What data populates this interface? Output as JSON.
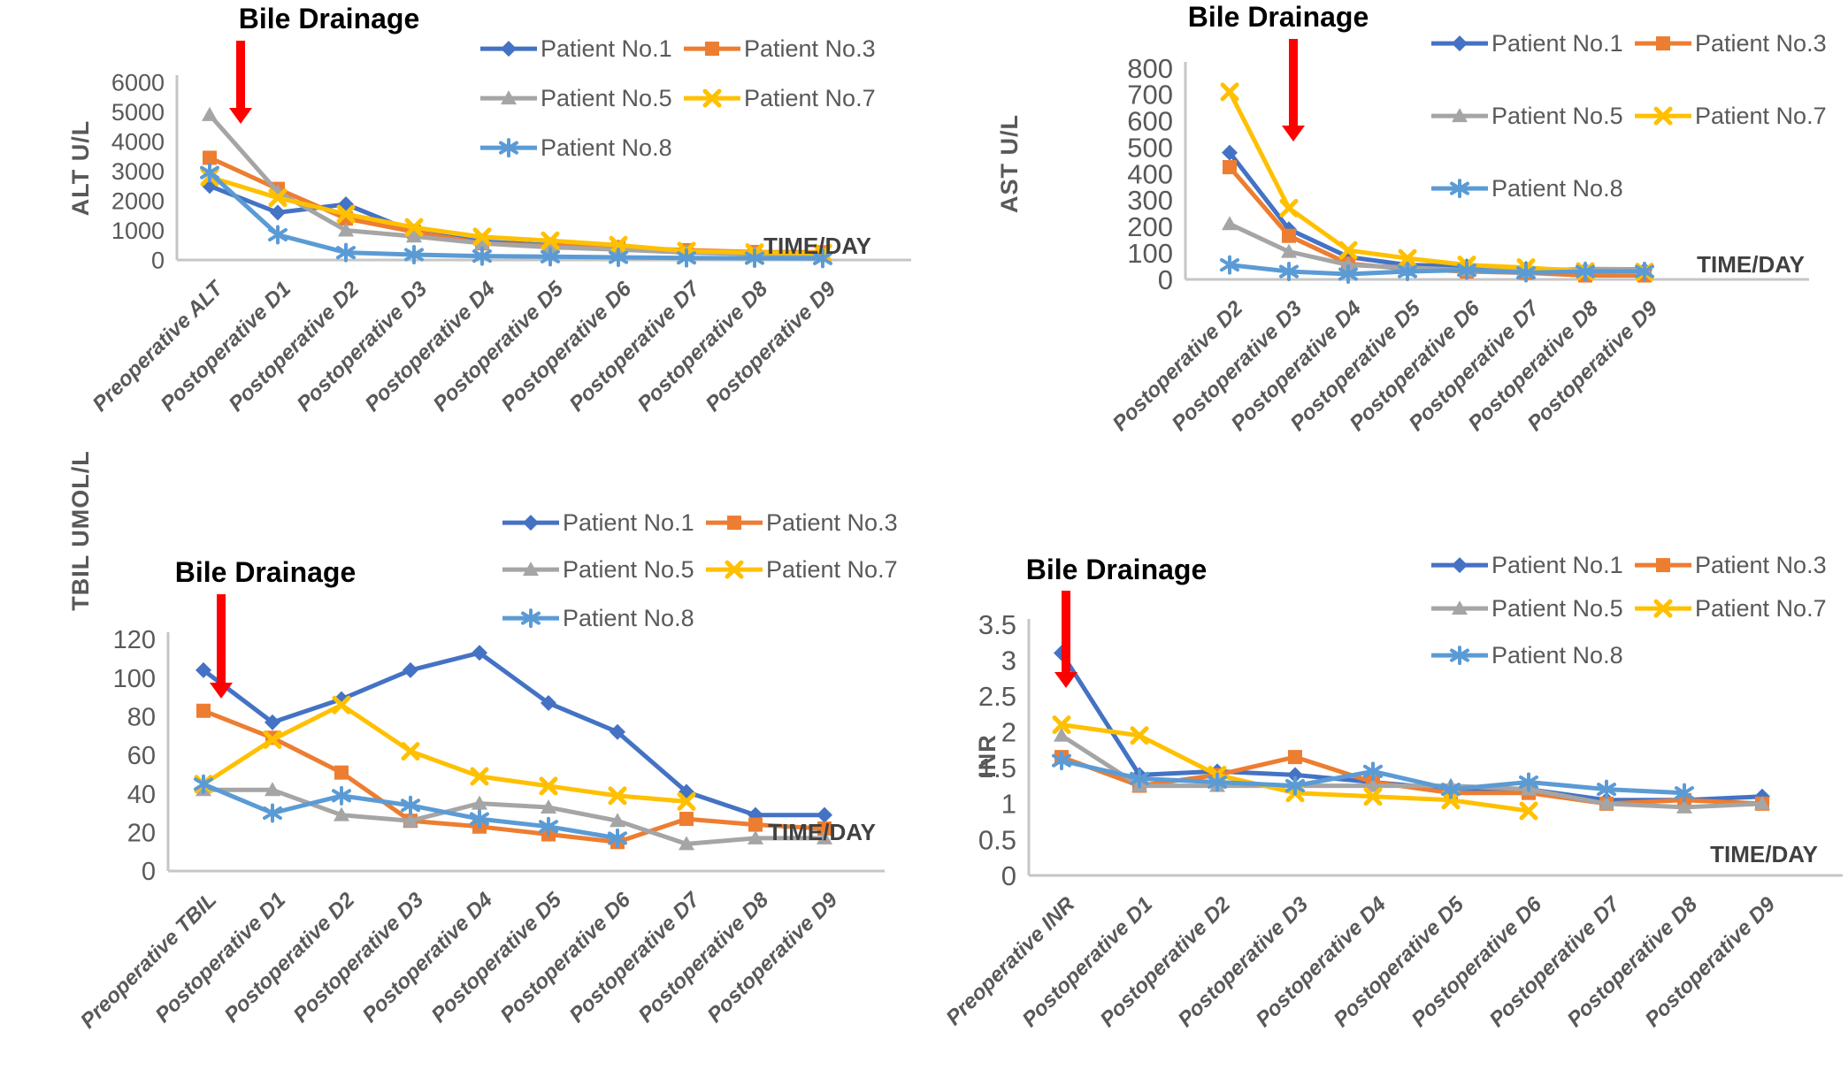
{
  "figure": {
    "annotation_label": "Bile Drainage",
    "time_axis_label": "TIME/DAY",
    "legend_labels": [
      "Patient No.1",
      "Patient No.3",
      "Patient No.5",
      "Patient No.7",
      "Patient No.8"
    ],
    "colors": {
      "patient_no1": "#4472C4",
      "patient_no3": "#ED7D31",
      "patient_no5": "#A5A5A5",
      "patient_no7": "#FFC000",
      "patient_no8": "#5B9BD5",
      "arrow": "#FF0000",
      "axis_line": "#C6C6C6",
      "axis_text": "#595959",
      "title_text": "#000000"
    }
  },
  "chart_data": [
    {
      "id": "alt",
      "type": "line",
      "title": "Bile Drainage",
      "ylabel": "ALT U/L",
      "xlabel": "TIME/DAY",
      "ylim": [
        0,
        6000
      ],
      "ytick_step": 1000,
      "grid": false,
      "legend_position": "top-right",
      "categories": [
        "Preoperative ALT",
        "Postoperative D1",
        "Postoperative D2",
        "Postoperative D3",
        "Postoperative D4",
        "Postoperative D5",
        "Postoperative D6",
        "Postoperative D7",
        "Postoperative D8",
        "Postoperative D9"
      ],
      "series": [
        {
          "name": "Patient No.1",
          "color": "#4472C4",
          "marker": "diamond",
          "values": [
            2500,
            1600,
            1880,
            950,
            620,
            500,
            420,
            300,
            200,
            150
          ]
        },
        {
          "name": "Patient No.3",
          "color": "#ED7D31",
          "marker": "square",
          "values": [
            3450,
            2400,
            1400,
            950,
            560,
            480,
            430,
            330,
            270,
            260
          ]
        },
        {
          "name": "Patient No.5",
          "color": "#A5A5A5",
          "marker": "triangle",
          "values": [
            4900,
            2300,
            1000,
            800,
            560,
            430,
            350,
            250,
            200,
            160
          ]
        },
        {
          "name": "Patient No.7",
          "color": "#FFC000",
          "marker": "x",
          "values": [
            2800,
            2100,
            1550,
            1100,
            780,
            650,
            500,
            300,
            250,
            230
          ]
        },
        {
          "name": "Patient No.8",
          "color": "#5B9BD5",
          "marker": "asterisk",
          "values": [
            2950,
            850,
            250,
            180,
            130,
            110,
            90,
            70,
            60,
            50
          ]
        }
      ]
    },
    {
      "id": "ast",
      "type": "line",
      "title": "Bile Drainage",
      "ylabel": "AST U/L",
      "xlabel": "TIME/DAY",
      "ylim": [
        0,
        800
      ],
      "ytick_step": 100,
      "grid": false,
      "legend_position": "top-right",
      "categories": [
        "Postoperative D2",
        "Postoperative D3",
        "Postoperative D4",
        "Postoperative D5",
        "Postoperative D6",
        "Postoperative D7",
        "Postoperative D8",
        "Postoperative D9"
      ],
      "series": [
        {
          "name": "Patient No.1",
          "color": "#4472C4",
          "marker": "diamond",
          "values": [
            480,
            190,
            85,
            55,
            50,
            40,
            35,
            35
          ]
        },
        {
          "name": "Patient No.3",
          "color": "#ED7D31",
          "marker": "square",
          "values": [
            425,
            165,
            60,
            40,
            30,
            25,
            15,
            15
          ]
        },
        {
          "name": "Patient No.5",
          "color": "#A5A5A5",
          "marker": "triangle",
          "values": [
            210,
            105,
            55,
            45,
            35,
            30,
            40,
            38
          ]
        },
        {
          "name": "Patient No.7",
          "color": "#FFC000",
          "marker": "x",
          "values": [
            710,
            270,
            110,
            80,
            55,
            45,
            30,
            28
          ]
        },
        {
          "name": "Patient No.8",
          "color": "#5B9BD5",
          "marker": "asterisk",
          "values": [
            55,
            30,
            20,
            30,
            35,
            25,
            30,
            30
          ]
        }
      ]
    },
    {
      "id": "tbil",
      "type": "line",
      "title": "Bile Drainage",
      "ylabel": "TBIL UMOL/L",
      "xlabel": "TIME/DAY",
      "ylim": [
        0,
        120
      ],
      "ytick_step": 20,
      "grid": false,
      "legend_position": "top-right",
      "categories": [
        "Preoperative TBIL",
        "Postoperative D1",
        "Postoperative D2",
        "Postoperative D3",
        "Postoperative D4",
        "Postoperative D5",
        "Postoperative D6",
        "Postoperative D7",
        "Postoperative D8",
        "Postoperative D9"
      ],
      "series": [
        {
          "name": "Patient No.1",
          "color": "#4472C4",
          "marker": "diamond",
          "values": [
            104,
            77,
            89,
            104,
            113,
            87,
            72,
            41,
            29,
            29
          ]
        },
        {
          "name": "Patient No.3",
          "color": "#ED7D31",
          "marker": "square",
          "values": [
            83,
            69,
            51,
            26,
            23,
            19,
            15,
            27,
            24,
            22
          ]
        },
        {
          "name": "Patient No.5",
          "color": "#A5A5A5",
          "marker": "triangle",
          "values": [
            42,
            42,
            29,
            26,
            35,
            33,
            26,
            14,
            17,
            17
          ]
        },
        {
          "name": "Patient No.7",
          "color": "#FFC000",
          "marker": "x",
          "values": [
            45,
            68,
            86,
            62,
            49,
            44,
            39,
            36
          ]
        },
        {
          "name": "Patient No.8",
          "color": "#5B9BD5",
          "marker": "asterisk",
          "values": [
            45,
            30,
            39,
            34,
            27,
            23,
            17
          ]
        }
      ]
    },
    {
      "id": "inr",
      "type": "line",
      "title": "Bile Drainage",
      "ylabel": "INR",
      "xlabel": "TIME/DAY",
      "ylim": [
        0,
        3.5
      ],
      "ytick_step": 0.5,
      "grid": false,
      "legend_position": "top-right",
      "categories": [
        "Preoperative  INR",
        "Postoperative D1",
        "Postoperative D2",
        "Postoperative D3",
        "Postoperative D4",
        "Postoperative D5",
        "Postoperative D6",
        "Postoperative D7",
        "Postoperative D8",
        "Postoperative D9"
      ],
      "series": [
        {
          "name": "Patient No.1",
          "color": "#4472C4",
          "marker": "diamond",
          "values": [
            3.1,
            1.4,
            1.45,
            1.4,
            1.3,
            1.2,
            1.2,
            1.05,
            1.05,
            1.1
          ]
        },
        {
          "name": "Patient No.3",
          "color": "#ED7D31",
          "marker": "square",
          "values": [
            1.65,
            1.25,
            1.4,
            1.65,
            1.3,
            1.15,
            1.15,
            1.0,
            1.05,
            1.0
          ]
        },
        {
          "name": "Patient No.5",
          "color": "#A5A5A5",
          "marker": "triangle",
          "values": [
            1.95,
            1.25,
            1.25,
            1.25,
            1.25,
            1.25,
            1.2,
            1.0,
            0.95,
            1.0
          ]
        },
        {
          "name": "Patient No.7",
          "color": "#FFC000",
          "marker": "x",
          "values": [
            2.1,
            1.95,
            1.4,
            1.15,
            1.1,
            1.05,
            0.9
          ]
        },
        {
          "name": "Patient No.8",
          "color": "#5B9BD5",
          "marker": "asterisk",
          "values": [
            1.6,
            1.35,
            1.3,
            1.25,
            1.45,
            1.2,
            1.3,
            1.2,
            1.15
          ]
        }
      ]
    }
  ]
}
